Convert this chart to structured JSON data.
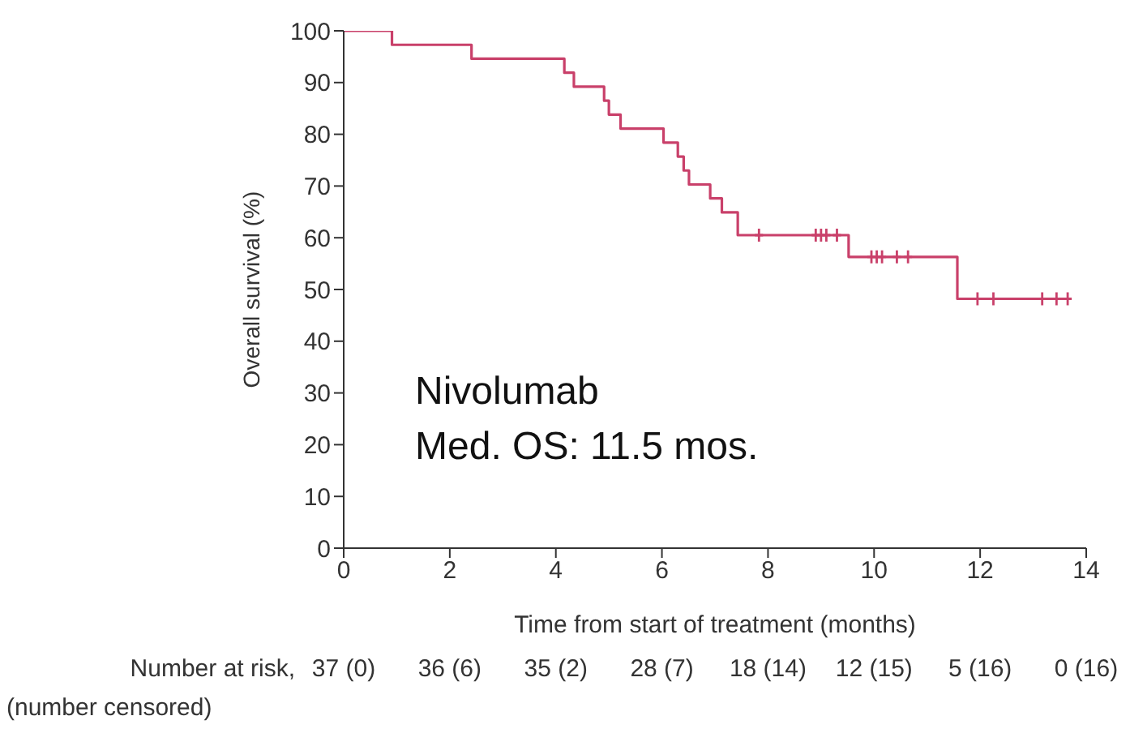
{
  "chart_data": {
    "type": "step",
    "xlabel": "Time from start of treatment (months)",
    "ylabel": "Overall survival (%)",
    "series": [
      {
        "color": "#c9406a",
        "x": [
          0,
          0.91,
          2.41,
          4.16,
          4.34,
          4.91,
          5.0,
          5.22,
          6.03,
          6.3,
          6.41,
          6.51,
          6.91,
          7.13,
          7.43,
          9.52,
          11.57,
          13.7
        ],
        "values": [
          100,
          97.3,
          94.6,
          91.9,
          89.2,
          86.5,
          83.8,
          81.1,
          78.4,
          75.7,
          73.0,
          70.3,
          67.6,
          64.9,
          60.5,
          56.3,
          48.2,
          48.2
        ]
      },
      {
        "type": "scatter",
        "marker": "cross",
        "color": "#c9406a",
        "x": [
          7.83,
          8.9,
          9.0,
          9.1,
          9.3,
          9.95,
          10.05,
          10.15,
          10.43,
          10.64,
          11.95,
          12.25,
          13.17,
          13.44,
          13.65
        ],
        "values": [
          60.5,
          60.5,
          60.5,
          60.5,
          60.5,
          56.3,
          56.3,
          56.3,
          56.3,
          56.3,
          48.2,
          48.2,
          48.2,
          48.2,
          48.2
        ]
      }
    ],
    "xlim": [
      0,
      14
    ],
    "xticks": [
      0,
      2,
      4,
      6,
      8,
      10,
      12,
      14
    ],
    "ylim": [
      0,
      100
    ],
    "yticks": [
      0,
      10,
      20,
      30,
      40,
      50,
      60,
      70,
      80,
      90,
      100
    ],
    "grid": false,
    "legend": false,
    "annotations": [
      "Nivolumab",
      "Med. OS: 11.5 mos.",
      "Number at risk,",
      "(number censored)",
      "37 (0)",
      "36 (6)",
      "35 (2)",
      "28 (7)",
      "18 (14)",
      "12 (15)",
      "5 (16)",
      "0 (16)"
    ]
  }
}
